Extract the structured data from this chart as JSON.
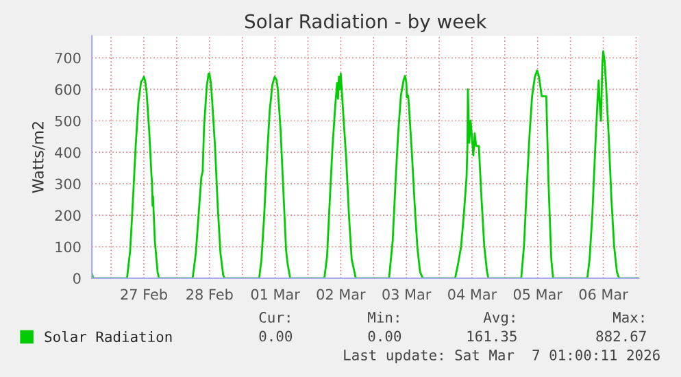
{
  "chart_data": {
    "type": "line",
    "title": "Solar Radiation - by week",
    "ylabel": "Watts/m2",
    "xlim": [
      "2026-02-26T17:00",
      "2026-03-07T01:00"
    ],
    "ylim": [
      0,
      770
    ],
    "yticks": [
      0,
      100,
      200,
      300,
      400,
      500,
      600,
      700
    ],
    "xticks": [
      {
        "value": "2026-02-27T00:00",
        "label": null
      },
      {
        "value": "2026-02-27T12:00",
        "label": "27 Feb"
      },
      {
        "value": "2026-02-28T00:00",
        "label": null
      },
      {
        "value": "2026-02-28T12:00",
        "label": "28 Feb"
      },
      {
        "value": "2026-03-01T00:00",
        "label": null
      },
      {
        "value": "2026-03-01T12:00",
        "label": "01 Mar"
      },
      {
        "value": "2026-03-02T00:00",
        "label": null
      },
      {
        "value": "2026-03-02T12:00",
        "label": "02 Mar"
      },
      {
        "value": "2026-03-03T00:00",
        "label": null
      },
      {
        "value": "2026-03-03T12:00",
        "label": "03 Mar"
      },
      {
        "value": "2026-03-04T00:00",
        "label": null
      },
      {
        "value": "2026-03-04T12:00",
        "label": "04 Mar"
      },
      {
        "value": "2026-03-05T00:00",
        "label": null
      },
      {
        "value": "2026-03-05T12:00",
        "label": "05 Mar"
      },
      {
        "value": "2026-03-06T00:00",
        "label": null
      },
      {
        "value": "2026-03-06T12:00",
        "label": "06 Mar"
      },
      {
        "value": "2026-03-07T00:00",
        "label": null
      }
    ],
    "grid": true,
    "legend": "bottom",
    "annotations": [
      "Cur:",
      "Min:",
      "Avg:",
      "Max:",
      "0.00",
      "0.00",
      "161.35",
      "882.67",
      "Last update: Sat Mar  7 01:00:11 2026"
    ],
    "series": [
      {
        "name": "Solar Radiation",
        "color": "#00cc00",
        "x": [
          "2026-02-26T17:00",
          "2026-02-26T17:30",
          "2026-02-27T05:50",
          "2026-02-27T07:00",
          "2026-02-27T08:00",
          "2026-02-27T09:00",
          "2026-02-27T10:00",
          "2026-02-27T11:00",
          "2026-02-27T11:30",
          "2026-02-27T12:00",
          "2026-02-27T12:30",
          "2026-02-27T13:00",
          "2026-02-27T14:00",
          "2026-02-27T14:45",
          "2026-02-27T15:00",
          "2026-02-27T15:10",
          "2026-02-27T15:20",
          "2026-02-27T16:00",
          "2026-02-27T17:00",
          "2026-02-27T17:30",
          "2026-02-28T05:50",
          "2026-02-28T07:00",
          "2026-02-28T08:00",
          "2026-02-28T09:00",
          "2026-02-28T09:30",
          "2026-02-28T10:00",
          "2026-02-28T11:00",
          "2026-02-28T11:40",
          "2026-02-28T12:00",
          "2026-02-28T12:30",
          "2026-02-28T13:00",
          "2026-02-28T14:00",
          "2026-02-28T15:00",
          "2026-02-28T16:00",
          "2026-02-28T17:00",
          "2026-02-28T17:30",
          "2026-03-01T06:10",
          "2026-03-01T07:00",
          "2026-03-01T08:00",
          "2026-03-01T09:00",
          "2026-03-01T10:00",
          "2026-03-01T11:00",
          "2026-03-01T11:50",
          "2026-03-01T12:30",
          "2026-03-01T13:00",
          "2026-03-01T14:00",
          "2026-03-01T15:00",
          "2026-03-01T16:00",
          "2026-03-01T16:30",
          "2026-03-01T17:30",
          "2026-03-02T06:00",
          "2026-03-02T07:00",
          "2026-03-02T08:00",
          "2026-03-02T09:00",
          "2026-03-02T10:00",
          "2026-03-02T10:40",
          "2026-03-02T11:00",
          "2026-03-02T11:20",
          "2026-03-02T11:40",
          "2026-03-02T12:00",
          "2026-03-02T12:30",
          "2026-03-02T13:00",
          "2026-03-02T14:00",
          "2026-03-02T15:00",
          "2026-03-02T16:00",
          "2026-03-02T17:30",
          "2026-03-03T05:40",
          "2026-03-03T07:00",
          "2026-03-03T08:00",
          "2026-03-03T09:00",
          "2026-03-03T10:00",
          "2026-03-03T11:00",
          "2026-03-03T11:30",
          "2026-03-03T12:00",
          "2026-03-03T12:10",
          "2026-03-03T12:40",
          "2026-03-03T12:50",
          "2026-03-03T14:00",
          "2026-03-03T15:00",
          "2026-03-03T16:00",
          "2026-03-03T17:00",
          "2026-03-03T18:00",
          "2026-03-04T05:50",
          "2026-03-04T07:00",
          "2026-03-04T08:00",
          "2026-03-04T09:00",
          "2026-03-04T10:00",
          "2026-03-04T10:20",
          "2026-03-04T10:30",
          "2026-03-04T11:00",
          "2026-03-04T11:30",
          "2026-03-04T12:30",
          "2026-03-04T13:00",
          "2026-03-04T13:30",
          "2026-03-04T14:30",
          "2026-03-04T15:30",
          "2026-03-04T16:30",
          "2026-03-04T17:30",
          "2026-03-04T18:00",
          "2026-03-05T06:00",
          "2026-03-05T07:00",
          "2026-03-05T08:00",
          "2026-03-05T09:00",
          "2026-03-05T10:00",
          "2026-03-05T11:00",
          "2026-03-05T11:50",
          "2026-03-05T12:30",
          "2026-03-05T13:30",
          "2026-03-05T15:10",
          "2026-03-05T16:00",
          "2026-03-05T17:00",
          "2026-03-05T17:40",
          "2026-03-06T06:10",
          "2026-03-06T07:00",
          "2026-03-06T08:00",
          "2026-03-06T09:00",
          "2026-03-06T10:00",
          "2026-03-06T10:20",
          "2026-03-06T10:40",
          "2026-03-06T11:10",
          "2026-03-06T11:40",
          "2026-03-06T12:00",
          "2026-03-06T12:30",
          "2026-03-06T13:00",
          "2026-03-06T14:00",
          "2026-03-06T15:00",
          "2026-03-06T16:00",
          "2026-03-06T17:00",
          "2026-03-06T17:50",
          "2026-03-07T01:00"
        ],
        "values": [
          15,
          0,
          0,
          90,
          250,
          420,
          560,
          625,
          630,
          640,
          625,
          590,
          460,
          330,
          300,
          230,
          260,
          120,
          20,
          0,
          0,
          80,
          200,
          320,
          340,
          480,
          610,
          650,
          650,
          620,
          560,
          420,
          230,
          80,
          10,
          0,
          0,
          60,
          200,
          380,
          530,
          615,
          640,
          630,
          600,
          470,
          280,
          90,
          50,
          0,
          0,
          70,
          250,
          420,
          550,
          620,
          570,
          640,
          600,
          650,
          580,
          510,
          380,
          200,
          60,
          0,
          0,
          120,
          300,
          460,
          580,
          630,
          643,
          620,
          575,
          580,
          560,
          400,
          240,
          100,
          20,
          0,
          0,
          50,
          100,
          200,
          320,
          420,
          600,
          430,
          500,
          390,
          460,
          420,
          420,
          250,
          100,
          20,
          0,
          0,
          100,
          280,
          450,
          580,
          640,
          660,
          640,
          578,
          578,
          300,
          60,
          0,
          0,
          60,
          200,
          400,
          580,
          628,
          560,
          500,
          680,
          721,
          690,
          620,
          450,
          250,
          100,
          20,
          0,
          0
        ]
      }
    ]
  }
}
